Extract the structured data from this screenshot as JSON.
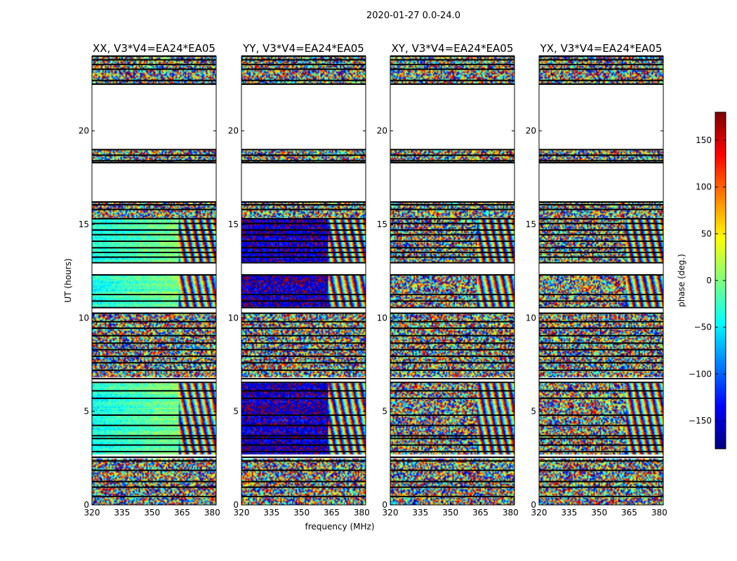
{
  "chart_data": {
    "type": "heatmap",
    "title": "2020-01-27 0.0-24.0",
    "xlabel": "frequency (MHz)",
    "ylabel": "UT (hours)",
    "xlim": [
      320,
      382
    ],
    "ylim": [
      0,
      24
    ],
    "x_ticks": [
      "320",
      "335",
      "350",
      "365",
      "380"
    ],
    "y_ticks": [
      "0",
      "5",
      "10",
      "15",
      "20"
    ],
    "colorbar": {
      "label": "phase (deg.)",
      "range": [
        -180,
        180
      ],
      "ticks": [
        "150",
        "100",
        "50",
        "0",
        "−50",
        "−100",
        "−150"
      ],
      "colormap": "jet"
    },
    "panels": [
      {
        "title": "XX, V3*V4=EA24*EA05",
        "pol": "XX",
        "coherent_mean_phase": -40,
        "coherent_spread": 25
      },
      {
        "title": "YY, V3*V4=EA24*EA05",
        "pol": "YY",
        "coherent_mean_phase": -150,
        "coherent_spread": 35
      },
      {
        "title": "XY, V3*V4=EA24*EA05",
        "pol": "XY",
        "coherent_mean_phase": 0,
        "coherent_spread": 180
      },
      {
        "title": "YX, V3*V4=EA24*EA05",
        "pol": "YX",
        "coherent_mean_phase": 0,
        "coherent_spread": 180
      }
    ],
    "flagged_ut_ranges": [
      [
        19.0,
        22.5
      ],
      [
        16.2,
        18.3
      ],
      [
        12.3,
        13.0
      ],
      [
        10.3,
        10.6
      ],
      [
        6.5,
        6.8
      ],
      [
        2.5,
        2.7
      ]
    ],
    "coherent_ut_ranges": [
      [
        2.7,
        6.5
      ],
      [
        10.6,
        12.3
      ],
      [
        13.0,
        15.3
      ]
    ],
    "wrap_onset_mhz": 363,
    "flag_lines_ut": [
      0.45,
      0.95,
      1.25,
      1.85,
      2.35,
      2.55,
      2.85,
      3.2,
      3.55,
      3.7,
      4.25,
      4.8,
      5.7,
      6.1,
      6.55,
      6.75,
      7.2,
      7.6,
      7.95,
      8.3,
      8.65,
      9.05,
      9.45,
      9.8,
      10.25,
      10.55,
      10.9,
      11.25,
      12.3,
      12.95,
      13.25,
      13.5,
      13.75,
      14.1,
      14.45,
      14.7,
      15.05,
      15.3,
      15.8,
      16.05,
      16.2,
      18.3,
      18.4,
      18.7,
      19.0,
      22.5,
      22.7,
      23.3,
      23.55,
      23.8,
      24.0
    ]
  }
}
